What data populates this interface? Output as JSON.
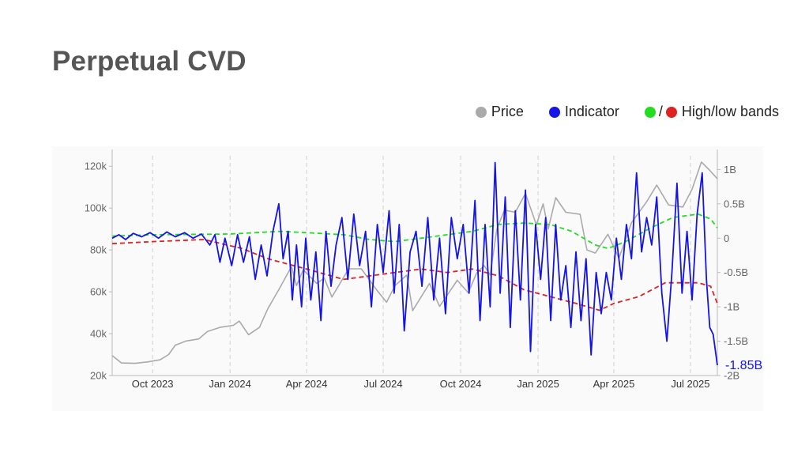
{
  "title": "Perpetual CVD",
  "legend": {
    "price_label": "Price",
    "indicator_label": "Indicator",
    "bands_label": "High/low bands",
    "bands_separator": "/"
  },
  "colors": {
    "price": "#aaaaaa",
    "indicator": "#1414e6",
    "high_band": "#22dd22",
    "low_band": "#dd2222",
    "grid": "#d0d0d0",
    "axis_text": "#666666",
    "title": "#555555"
  },
  "chart_data": {
    "type": "line",
    "x_ticks": [
      "Oct 2023",
      "Jan 2024",
      "Apr 2024",
      "Jul 2024",
      "Oct 2024",
      "Jan 2025",
      "Apr 2025",
      "Jul 2025"
    ],
    "x_tick_dates": [
      "2023-10-01",
      "2024-01-01",
      "2024-04-01",
      "2024-07-01",
      "2024-10-01",
      "2025-01-01",
      "2025-04-01",
      "2025-07-01"
    ],
    "x_range": [
      "2023-08-14",
      "2025-08-02"
    ],
    "y_left": {
      "ticks": [
        "20k",
        "40k",
        "60k",
        "80k",
        "100k",
        "120k"
      ],
      "tick_values": [
        20000,
        40000,
        60000,
        80000,
        100000,
        120000
      ],
      "range": [
        20000,
        125000
      ]
    },
    "y_right": {
      "ticks": [
        "1B",
        "0.5B",
        "0",
        "-0.5B",
        "-1B",
        "-1.5B",
        "-2B"
      ],
      "tick_values": [
        1,
        0.5,
        0,
        -0.5,
        -1,
        -1.5,
        -2
      ],
      "range": [
        -2.0,
        1.2
      ],
      "unit": "B"
    },
    "last_value_label": "-1.85B",
    "grid": "vertical dashed",
    "legend_position": "top-right",
    "series": [
      {
        "name": "Price",
        "axis": "left",
        "points": [
          [
            "2023-08-14",
            29500
          ],
          [
            "2023-08-25",
            26000
          ],
          [
            "2023-09-10",
            25800
          ],
          [
            "2023-09-25",
            26500
          ],
          [
            "2023-10-10",
            27500
          ],
          [
            "2023-10-20",
            30000
          ],
          [
            "2023-10-28",
            34500
          ],
          [
            "2023-11-10",
            36500
          ],
          [
            "2023-11-25",
            37500
          ],
          [
            "2023-12-05",
            41000
          ],
          [
            "2023-12-20",
            43000
          ],
          [
            "2024-01-05",
            44000
          ],
          [
            "2024-01-12",
            46000
          ],
          [
            "2024-01-23",
            39500
          ],
          [
            "2024-02-05",
            43000
          ],
          [
            "2024-02-15",
            52000
          ],
          [
            "2024-02-28",
            61000
          ],
          [
            "2024-03-14",
            72000
          ],
          [
            "2024-03-20",
            63000
          ],
          [
            "2024-03-28",
            70500
          ],
          [
            "2024-04-13",
            64000
          ],
          [
            "2024-04-22",
            66500
          ],
          [
            "2024-05-01",
            57500
          ],
          [
            "2024-05-21",
            71000
          ],
          [
            "2024-06-05",
            71000
          ],
          [
            "2024-06-24",
            60500
          ],
          [
            "2024-07-05",
            55000
          ],
          [
            "2024-07-15",
            63000
          ],
          [
            "2024-07-29",
            68000
          ],
          [
            "2024-08-05",
            51000
          ],
          [
            "2024-08-25",
            64000
          ],
          [
            "2024-09-06",
            53000
          ],
          [
            "2024-09-27",
            65500
          ],
          [
            "2024-10-10",
            59500
          ],
          [
            "2024-10-20",
            69000
          ],
          [
            "2024-10-29",
            72500
          ],
          [
            "2024-11-05",
            68000
          ],
          [
            "2024-11-13",
            90000
          ],
          [
            "2024-11-22",
            99000
          ],
          [
            "2024-12-05",
            98000
          ],
          [
            "2024-12-17",
            107000
          ],
          [
            "2024-12-30",
            92000
          ],
          [
            "2025-01-07",
            102000
          ],
          [
            "2025-01-13",
            90000
          ],
          [
            "2025-01-22",
            105000
          ],
          [
            "2025-02-03",
            98000
          ],
          [
            "2025-02-20",
            97000
          ],
          [
            "2025-02-28",
            80000
          ],
          [
            "2025-03-10",
            78500
          ],
          [
            "2025-03-25",
            87500
          ],
          [
            "2025-04-07",
            76000
          ],
          [
            "2025-04-22",
            93000
          ],
          [
            "2025-05-10",
            103000
          ],
          [
            "2025-05-22",
            111000
          ],
          [
            "2025-06-05",
            101500
          ],
          [
            "2025-06-22",
            100500
          ],
          [
            "2025-07-03",
            109000
          ],
          [
            "2025-07-14",
            122000
          ],
          [
            "2025-07-24",
            118000
          ],
          [
            "2025-08-02",
            114000
          ]
        ]
      },
      {
        "name": "Indicator",
        "axis": "right",
        "points": [
          [
            "2023-08-14",
            0.0
          ],
          [
            "2023-08-22",
            0.05
          ],
          [
            "2023-08-30",
            -0.02
          ],
          [
            "2023-09-08",
            0.07
          ],
          [
            "2023-09-18",
            0.02
          ],
          [
            "2023-09-28",
            0.08
          ],
          [
            "2023-10-08",
            0.0
          ],
          [
            "2023-10-18",
            0.09
          ],
          [
            "2023-10-28",
            0.02
          ],
          [
            "2023-11-08",
            0.08
          ],
          [
            "2023-11-18",
            0.0
          ],
          [
            "2023-11-28",
            0.06
          ],
          [
            "2023-12-08",
            -0.1
          ],
          [
            "2023-12-14",
            0.05
          ],
          [
            "2023-12-20",
            -0.35
          ],
          [
            "2023-12-26",
            0.0
          ],
          [
            "2024-01-03",
            -0.4
          ],
          [
            "2024-01-10",
            0.05
          ],
          [
            "2024-01-17",
            -0.35
          ],
          [
            "2024-01-24",
            0.02
          ],
          [
            "2024-01-31",
            -0.6
          ],
          [
            "2024-02-07",
            -0.1
          ],
          [
            "2024-02-14",
            -0.55
          ],
          [
            "2024-02-21",
            0.1
          ],
          [
            "2024-02-28",
            0.5
          ],
          [
            "2024-03-04",
            -0.3
          ],
          [
            "2024-03-10",
            0.1
          ],
          [
            "2024-03-15",
            -0.9
          ],
          [
            "2024-03-20",
            -0.1
          ],
          [
            "2024-03-26",
            -1.0
          ],
          [
            "2024-03-31",
            0.0
          ],
          [
            "2024-04-06",
            -0.9
          ],
          [
            "2024-04-12",
            -0.2
          ],
          [
            "2024-04-18",
            -1.2
          ],
          [
            "2024-04-24",
            0.1
          ],
          [
            "2024-04-30",
            -0.7
          ],
          [
            "2024-05-06",
            -0.1
          ],
          [
            "2024-05-13",
            0.3
          ],
          [
            "2024-05-20",
            -0.6
          ],
          [
            "2024-05-27",
            0.35
          ],
          [
            "2024-06-03",
            -0.4
          ],
          [
            "2024-06-10",
            0.1
          ],
          [
            "2024-06-17",
            -1.0
          ],
          [
            "2024-06-24",
            0.2
          ],
          [
            "2024-07-01",
            -0.5
          ],
          [
            "2024-07-08",
            0.4
          ],
          [
            "2024-07-14",
            -0.8
          ],
          [
            "2024-07-20",
            0.2
          ],
          [
            "2024-07-26",
            -1.35
          ],
          [
            "2024-08-02",
            -0.2
          ],
          [
            "2024-08-09",
            0.1
          ],
          [
            "2024-08-16",
            -0.7
          ],
          [
            "2024-08-23",
            0.3
          ],
          [
            "2024-08-30",
            -0.9
          ],
          [
            "2024-09-06",
            0.0
          ],
          [
            "2024-09-13",
            -1.1
          ],
          [
            "2024-09-20",
            0.3
          ],
          [
            "2024-09-27",
            -0.3
          ],
          [
            "2024-10-04",
            0.2
          ],
          [
            "2024-10-11",
            -0.8
          ],
          [
            "2024-10-18",
            0.55
          ],
          [
            "2024-10-24",
            -1.2
          ],
          [
            "2024-10-30",
            0.2
          ],
          [
            "2024-11-05",
            -1.0
          ],
          [
            "2024-11-11",
            1.1
          ],
          [
            "2024-11-17",
            -0.8
          ],
          [
            "2024-11-23",
            0.6
          ],
          [
            "2024-11-29",
            -1.3
          ],
          [
            "2024-12-05",
            0.4
          ],
          [
            "2024-12-11",
            -0.9
          ],
          [
            "2024-12-17",
            0.7
          ],
          [
            "2024-12-23",
            -1.65
          ],
          [
            "2024-12-29",
            0.2
          ],
          [
            "2025-01-04",
            -0.6
          ],
          [
            "2025-01-10",
            0.3
          ],
          [
            "2025-01-16",
            -1.2
          ],
          [
            "2025-01-22",
            0.2
          ],
          [
            "2025-01-28",
            -0.9
          ],
          [
            "2025-02-03",
            -0.4
          ],
          [
            "2025-02-09",
            -1.3
          ],
          [
            "2025-02-15",
            -0.2
          ],
          [
            "2025-02-21",
            -1.2
          ],
          [
            "2025-02-27",
            -0.3
          ],
          [
            "2025-03-05",
            -1.7
          ],
          [
            "2025-03-11",
            -0.5
          ],
          [
            "2025-03-17",
            -1.1
          ],
          [
            "2025-03-23",
            -0.5
          ],
          [
            "2025-03-29",
            -0.9
          ],
          [
            "2025-04-04",
            0.0
          ],
          [
            "2025-04-10",
            -0.6
          ],
          [
            "2025-04-16",
            0.2
          ],
          [
            "2025-04-22",
            -0.3
          ],
          [
            "2025-04-28",
            0.95
          ],
          [
            "2025-05-04",
            -0.2
          ],
          [
            "2025-05-10",
            0.3
          ],
          [
            "2025-05-16",
            -0.1
          ],
          [
            "2025-05-22",
            0.6
          ],
          [
            "2025-05-28",
            -0.8
          ],
          [
            "2025-06-03",
            -1.5
          ],
          [
            "2025-06-09",
            -0.5
          ],
          [
            "2025-06-15",
            0.8
          ],
          [
            "2025-06-21",
            -0.8
          ],
          [
            "2025-06-27",
            0.1
          ],
          [
            "2025-07-03",
            -0.9
          ],
          [
            "2025-07-09",
            0.35
          ],
          [
            "2025-07-15",
            0.95
          ],
          [
            "2025-07-20",
            -0.6
          ],
          [
            "2025-07-24",
            -1.3
          ],
          [
            "2025-07-28",
            -1.4
          ],
          [
            "2025-08-02",
            -1.85
          ]
        ]
      },
      {
        "name": "High band",
        "axis": "right",
        "points": [
          [
            "2023-08-14",
            0.03
          ],
          [
            "2023-10-01",
            0.05
          ],
          [
            "2024-01-01",
            0.06
          ],
          [
            "2024-03-01",
            0.1
          ],
          [
            "2024-04-01",
            0.08
          ],
          [
            "2024-05-15",
            0.05
          ],
          [
            "2024-06-15",
            -0.02
          ],
          [
            "2024-07-15",
            -0.05
          ],
          [
            "2024-08-15",
            0.0
          ],
          [
            "2024-09-15",
            0.05
          ],
          [
            "2024-10-15",
            0.1
          ],
          [
            "2024-11-15",
            0.2
          ],
          [
            "2024-12-15",
            0.22
          ],
          [
            "2025-01-15",
            0.2
          ],
          [
            "2025-02-10",
            0.1
          ],
          [
            "2025-03-10",
            -0.1
          ],
          [
            "2025-03-25",
            -0.15
          ],
          [
            "2025-04-15",
            -0.05
          ],
          [
            "2025-05-15",
            0.15
          ],
          [
            "2025-06-10",
            0.3
          ],
          [
            "2025-07-10",
            0.35
          ],
          [
            "2025-07-25",
            0.28
          ],
          [
            "2025-08-02",
            0.15
          ]
        ]
      },
      {
        "name": "Low band",
        "axis": "right",
        "points": [
          [
            "2023-08-14",
            -0.08
          ],
          [
            "2023-10-01",
            -0.05
          ],
          [
            "2023-12-01",
            -0.02
          ],
          [
            "2024-01-15",
            -0.15
          ],
          [
            "2024-02-15",
            -0.3
          ],
          [
            "2024-04-01",
            -0.45
          ],
          [
            "2024-05-15",
            -0.6
          ],
          [
            "2024-06-15",
            -0.55
          ],
          [
            "2024-07-15",
            -0.5
          ],
          [
            "2024-08-15",
            -0.45
          ],
          [
            "2024-09-15",
            -0.5
          ],
          [
            "2024-10-15",
            -0.45
          ],
          [
            "2024-11-15",
            -0.55
          ],
          [
            "2024-12-15",
            -0.75
          ],
          [
            "2025-01-15",
            -0.85
          ],
          [
            "2025-02-15",
            -0.95
          ],
          [
            "2025-03-15",
            -1.05
          ],
          [
            "2025-04-01",
            -0.95
          ],
          [
            "2025-05-01",
            -0.85
          ],
          [
            "2025-06-01",
            -0.65
          ],
          [
            "2025-07-10",
            -0.65
          ],
          [
            "2025-07-25",
            -0.7
          ],
          [
            "2025-08-02",
            -0.95
          ]
        ]
      }
    ]
  }
}
